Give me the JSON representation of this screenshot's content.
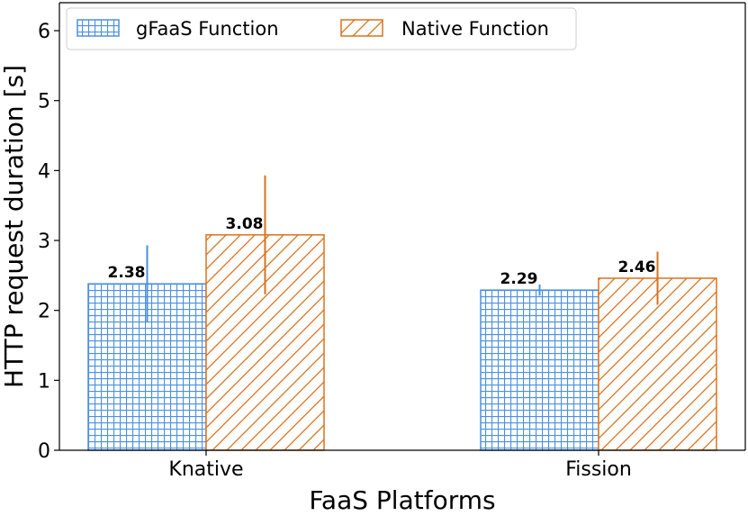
{
  "chart_data": {
    "type": "bar",
    "categories": [
      "Knative",
      "Fission"
    ],
    "series": [
      {
        "name": "gFaaS Function",
        "values": [
          2.38,
          2.29
        ],
        "errors": [
          0.55,
          0.08
        ],
        "color": "#4a90e2",
        "pattern": "grid"
      },
      {
        "name": "Native Function",
        "values": [
          3.08,
          2.46
        ],
        "errors": [
          0.85,
          0.38
        ],
        "color": "#d9721e",
        "pattern": "hatch"
      }
    ],
    "value_labels": [
      [
        "2.38",
        "2.29"
      ],
      [
        "3.08",
        "2.46"
      ]
    ],
    "xlabel": "FaaS Platforms",
    "ylabel": "HTTP request duration [s]",
    "ylim": [
      0,
      6.4
    ],
    "yticks": [
      0,
      1,
      2,
      3,
      4,
      5,
      6
    ],
    "legend_position": "top-left",
    "grid": false
  }
}
